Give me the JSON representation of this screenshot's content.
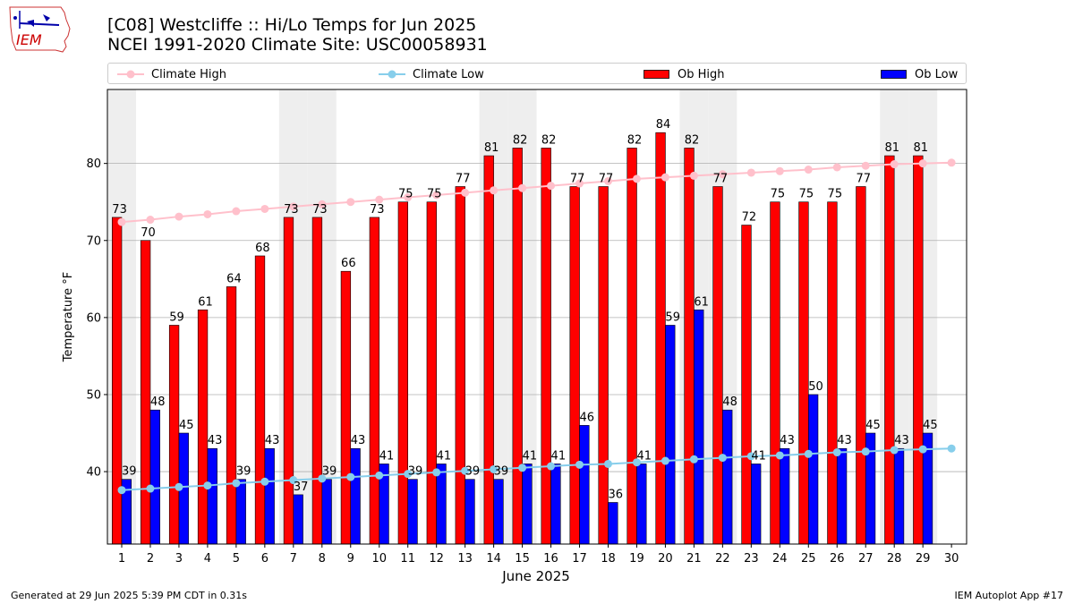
{
  "header": {
    "title_line1": "[C08] Westcliffe :: Hi/Lo Temps for Jun 2025",
    "title_line2": "NCEI 1991-2020 Climate Site: USC00058931",
    "logo_text": "IEM"
  },
  "legend": {
    "climate_high": "Climate High",
    "climate_low": "Climate Low",
    "ob_high": "Ob High",
    "ob_low": "Ob Low"
  },
  "footer": {
    "left": "Generated at 29 Jun 2025 5:39 PM CDT in 0.31s",
    "right": "IEM Autoplot App #17"
  },
  "colors": {
    "ob_high": "#ff0000",
    "ob_low": "#0000ff",
    "climate_high": "#ffc0cb",
    "climate_low": "#87ceeb",
    "weekend_shade": "#eeeeee",
    "grid": "#b0b0b0"
  },
  "chart_data": {
    "type": "bar",
    "title": "[C08] Westcliffe :: Hi/Lo Temps for Jun 2025",
    "subtitle": "NCEI 1991-2020 Climate Site: USC00058931",
    "xlabel": "June 2025",
    "ylabel": "Temperature °F",
    "ylim": [
      30.6,
      89.6
    ],
    "yticks": [
      40,
      50,
      60,
      70,
      80
    ],
    "grid": "horizontal",
    "legend_position": "top",
    "x": [
      1,
      2,
      3,
      4,
      5,
      6,
      7,
      8,
      9,
      10,
      11,
      12,
      13,
      14,
      15,
      16,
      17,
      18,
      19,
      20,
      21,
      22,
      23,
      24,
      25,
      26,
      27,
      28,
      29,
      30
    ],
    "shaded_days": [
      1,
      7,
      8,
      14,
      15,
      21,
      22,
      28,
      29
    ],
    "series": [
      {
        "name": "Ob High",
        "kind": "bar",
        "values": [
          73,
          70,
          59,
          61,
          64,
          68,
          73,
          73,
          66,
          73,
          75,
          75,
          77,
          81,
          82,
          82,
          77,
          77,
          82,
          84,
          82,
          77,
          72,
          75,
          75,
          75,
          77,
          81,
          81,
          null
        ]
      },
      {
        "name": "Ob Low",
        "kind": "bar",
        "values": [
          39,
          48,
          45,
          43,
          39,
          43,
          37,
          39,
          43,
          41,
          39,
          41,
          39,
          39,
          41,
          41,
          46,
          36,
          41,
          59,
          61,
          48,
          41,
          43,
          50,
          43,
          45,
          43,
          45,
          null
        ]
      },
      {
        "name": "Climate High",
        "kind": "line",
        "values": [
          72.4,
          72.7,
          73.1,
          73.4,
          73.8,
          74.1,
          74.4,
          74.7,
          75.0,
          75.3,
          75.6,
          75.9,
          76.2,
          76.5,
          76.8,
          77.1,
          77.4,
          77.7,
          78.0,
          78.2,
          78.4,
          78.6,
          78.8,
          79.0,
          79.2,
          79.5,
          79.7,
          79.9,
          80.0,
          80.1
        ]
      },
      {
        "name": "Climate Low",
        "kind": "line",
        "values": [
          37.6,
          37.8,
          38.0,
          38.2,
          38.5,
          38.7,
          38.9,
          39.1,
          39.3,
          39.5,
          39.7,
          39.9,
          40.1,
          40.3,
          40.5,
          40.7,
          40.9,
          41.0,
          41.2,
          41.4,
          41.6,
          41.8,
          42.0,
          42.1,
          42.3,
          42.5,
          42.6,
          42.8,
          42.9,
          43.0
        ]
      }
    ]
  }
}
